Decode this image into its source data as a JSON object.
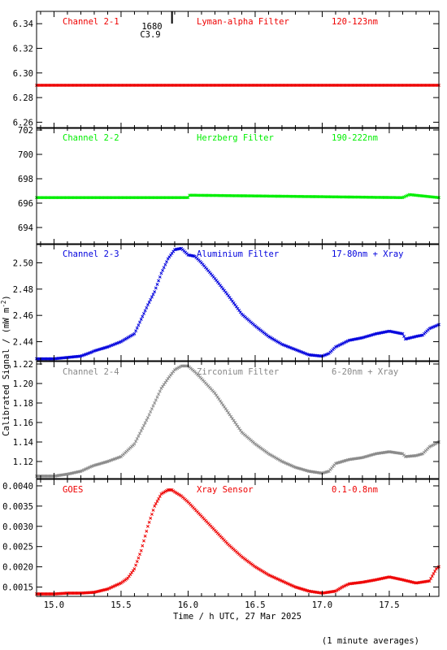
{
  "chart_data": {
    "type": "scatter",
    "ylabel": "Calibrated Signal / (mW m",
    "ylabel_sup": "-2",
    "ylabel_close": ")",
    "xlabel": "Time / h UTC, 27 Mar 2025",
    "footnote": "(1 minute averages)",
    "xlim": [
      14.87,
      17.87
    ],
    "xticks": [
      "15.0",
      "15.5",
      "16.0",
      "16.5",
      "17.0",
      "17.5"
    ],
    "x_minor_step": 0.1,
    "top_annotation": {
      "x": 15.88,
      "line1": "1680",
      "line2": "C3.9"
    },
    "panels": [
      {
        "channel": "Channel 2-1",
        "filter": "Lyman-alpha Filter",
        "band": "120-123nm",
        "color": "#ee0000",
        "ylim": [
          6.255,
          6.35
        ],
        "yticks": [
          "6.26",
          "6.28",
          "6.30",
          "6.32",
          "6.34"
        ],
        "series": {
          "x": [
            14.87,
            17.87
          ],
          "y": [
            6.29,
            6.29
          ]
        }
      },
      {
        "channel": "Channel 2-2",
        "filter": "Herzberg Filter",
        "band": "190-222nm",
        "color": "#00ee00",
        "ylim": [
          692.6,
          702.2
        ],
        "yticks": [
          "694",
          "696",
          "698",
          "700",
          "702"
        ],
        "series": {
          "x": [
            14.87,
            16.0,
            16.01,
            17.6,
            17.65,
            17.87
          ],
          "y": [
            696.45,
            696.45,
            696.65,
            696.45,
            696.7,
            696.45
          ]
        }
      },
      {
        "channel": "Channel 2-3",
        "filter": "Aluminium Filter",
        "band": "17-80nm + Xray",
        "color": "#0000dd",
        "ylim": [
          2.4255,
          2.5145
        ],
        "yticks": [
          "2.44",
          "2.46",
          "2.48",
          "2.50"
        ],
        "series": {
          "x": [
            14.87,
            15.0,
            15.1,
            15.2,
            15.28,
            15.3,
            15.4,
            15.5,
            15.6,
            15.7,
            15.75,
            15.8,
            15.85,
            15.9,
            15.95,
            16.0,
            16.05,
            16.1,
            16.2,
            16.3,
            16.4,
            16.5,
            16.6,
            16.7,
            16.8,
            16.9,
            17.0,
            17.05,
            17.1,
            17.2,
            17.3,
            17.4,
            17.5,
            17.6,
            17.62,
            17.7,
            17.75,
            17.8,
            17.87
          ],
          "y": [
            2.427,
            2.427,
            2.428,
            2.429,
            2.432,
            2.433,
            2.436,
            2.44,
            2.446,
            2.468,
            2.478,
            2.492,
            2.503,
            2.51,
            2.511,
            2.506,
            2.505,
            2.5,
            2.488,
            2.475,
            2.461,
            2.452,
            2.444,
            2.438,
            2.434,
            2.43,
            2.429,
            2.431,
            2.436,
            2.441,
            2.443,
            2.446,
            2.448,
            2.446,
            2.442,
            2.444,
            2.445,
            2.45,
            2.453
          ]
        }
      },
      {
        "channel": "Channel 2-4",
        "filter": "Zirconium Filter",
        "band": "6-20nm + Xray",
        "color": "#888888",
        "ylim": [
          1.1025,
          1.2225
        ],
        "yticks": [
          "1.12",
          "1.14",
          "1.16",
          "1.18",
          "1.20",
          "1.22"
        ],
        "series": {
          "x": [
            14.87,
            15.0,
            15.1,
            15.2,
            15.28,
            15.3,
            15.4,
            15.5,
            15.6,
            15.7,
            15.8,
            15.85,
            15.9,
            15.95,
            16.0,
            16.05,
            16.1,
            16.2,
            16.3,
            16.4,
            16.5,
            16.6,
            16.7,
            16.8,
            16.9,
            17.0,
            17.05,
            17.1,
            17.2,
            17.3,
            17.4,
            17.5,
            17.6,
            17.62,
            17.7,
            17.75,
            17.8,
            17.87
          ],
          "y": [
            1.105,
            1.105,
            1.107,
            1.11,
            1.115,
            1.116,
            1.12,
            1.125,
            1.138,
            1.165,
            1.195,
            1.205,
            1.214,
            1.218,
            1.218,
            1.212,
            1.205,
            1.19,
            1.17,
            1.15,
            1.138,
            1.128,
            1.12,
            1.114,
            1.11,
            1.108,
            1.11,
            1.118,
            1.122,
            1.124,
            1.128,
            1.13,
            1.128,
            1.125,
            1.126,
            1.128,
            1.135,
            1.14
          ]
        }
      },
      {
        "channel": "GOES",
        "filter": "Xray Sensor",
        "band": "0.1-0.8nm",
        "color": "#ee0000",
        "ylim": [
          0.00127,
          0.00416
        ],
        "yticks": [
          "0.0015",
          "0.0020",
          "0.0025",
          "0.0030",
          "0.0035",
          "0.0040"
        ],
        "series": {
          "x": [
            14.87,
            15.0,
            15.1,
            15.2,
            15.3,
            15.4,
            15.5,
            15.55,
            15.6,
            15.65,
            15.7,
            15.75,
            15.8,
            15.85,
            15.88,
            15.9,
            15.95,
            16.0,
            16.1,
            16.2,
            16.3,
            16.4,
            16.5,
            16.6,
            16.7,
            16.8,
            16.9,
            17.0,
            17.1,
            17.15,
            17.2,
            17.3,
            17.4,
            17.5,
            17.6,
            17.7,
            17.8,
            17.85,
            17.87
          ],
          "y": [
            0.00133,
            0.00133,
            0.00135,
            0.00135,
            0.00137,
            0.00145,
            0.0016,
            0.00172,
            0.00195,
            0.0024,
            0.003,
            0.0035,
            0.0038,
            0.0039,
            0.0039,
            0.00385,
            0.00375,
            0.0036,
            0.00325,
            0.0029,
            0.00255,
            0.00225,
            0.002,
            0.0018,
            0.00165,
            0.0015,
            0.0014,
            0.00135,
            0.0014,
            0.0015,
            0.00158,
            0.00162,
            0.00168,
            0.00175,
            0.00168,
            0.0016,
            0.00165,
            0.00195,
            0.002
          ]
        }
      }
    ]
  }
}
